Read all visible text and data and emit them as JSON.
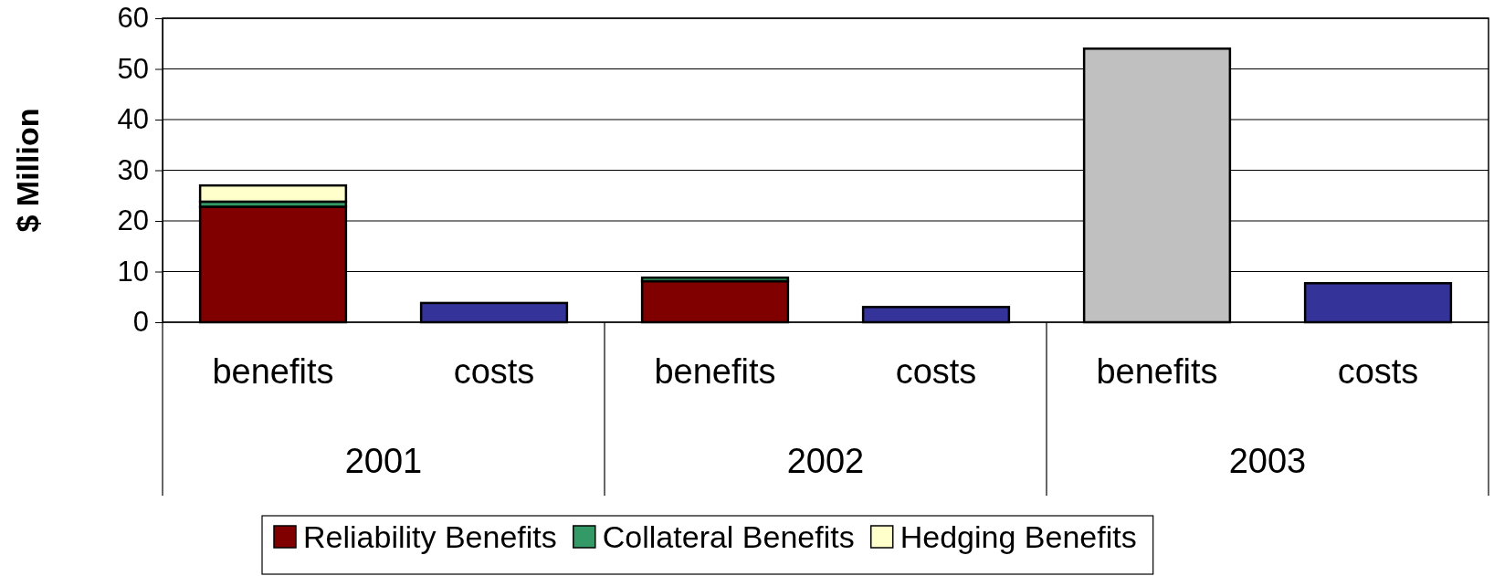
{
  "chart_data": {
    "type": "bar",
    "stacked": true,
    "ylabel": "$ Million",
    "categories": [
      "benefits",
      "costs",
      "benefits",
      "costs",
      "benefits",
      "costs"
    ],
    "annotations": [
      "2001",
      "2002",
      "2003"
    ],
    "series": [
      {
        "name": "Reliability Benefits",
        "color": "#800000",
        "values": [
          22.8,
          null,
          8.1,
          null,
          null,
          null
        ]
      },
      {
        "name": "Collateral Benefits",
        "color": "#339966",
        "values": [
          1.0,
          null,
          0.7,
          null,
          null,
          null
        ]
      },
      {
        "name": "Hedging Benefits",
        "color": "#ffffcc",
        "values": [
          3.2,
          null,
          null,
          null,
          null,
          null
        ]
      },
      {
        "color": "#333399",
        "values": [
          null,
          3.8,
          null,
          3.0,
          null,
          7.7
        ]
      },
      {
        "color": "#c0c0c0",
        "values": [
          null,
          null,
          null,
          null,
          54.0,
          null
        ]
      }
    ],
    "ylim": [
      0,
      60
    ],
    "yticks": [
      0,
      10,
      20,
      30,
      40,
      50,
      60
    ],
    "grid": "y",
    "legend": "bottom"
  }
}
